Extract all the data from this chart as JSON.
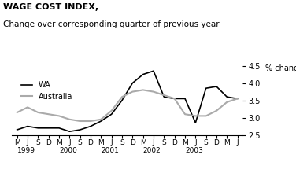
{
  "title_line1": "WAGE COST INDEX,",
  "title_line2": "Change over corresponding quarter of previous year",
  "ylabel": "% change",
  "legend_wa": "WA",
  "legend_aus": "Australia",
  "x_labels": [
    "M",
    "J",
    "S",
    "D",
    "M",
    "J",
    "S",
    "D",
    "M",
    "J",
    "S",
    "D",
    "M",
    "J",
    "S",
    "D",
    "M",
    "J",
    "S",
    "D",
    "M",
    "J"
  ],
  "x_year_labels": [
    [
      0,
      "1999"
    ],
    [
      4,
      "2000"
    ],
    [
      8,
      "2001"
    ],
    [
      12,
      "2002"
    ],
    [
      16,
      "2003"
    ]
  ],
  "ylim": [
    2.5,
    4.5
  ],
  "yticks": [
    2.5,
    3.0,
    3.5,
    4.0,
    4.5
  ],
  "wa_values": [
    2.65,
    2.75,
    2.7,
    2.7,
    2.7,
    2.6,
    2.65,
    2.75,
    2.9,
    3.1,
    3.5,
    4.0,
    4.25,
    4.35,
    3.6,
    3.55,
    3.55,
    2.85,
    3.85,
    3.9,
    3.6,
    3.55
  ],
  "aus_values": [
    3.15,
    3.3,
    3.15,
    3.1,
    3.05,
    2.95,
    2.9,
    2.9,
    2.95,
    3.2,
    3.6,
    3.75,
    3.8,
    3.75,
    3.65,
    3.55,
    3.1,
    3.05,
    3.05,
    3.2,
    3.45,
    3.55
  ],
  "wa_color": "#000000",
  "aus_color": "#aaaaaa",
  "background_color": "#ffffff",
  "wa_linewidth": 1.2,
  "aus_linewidth": 1.5
}
